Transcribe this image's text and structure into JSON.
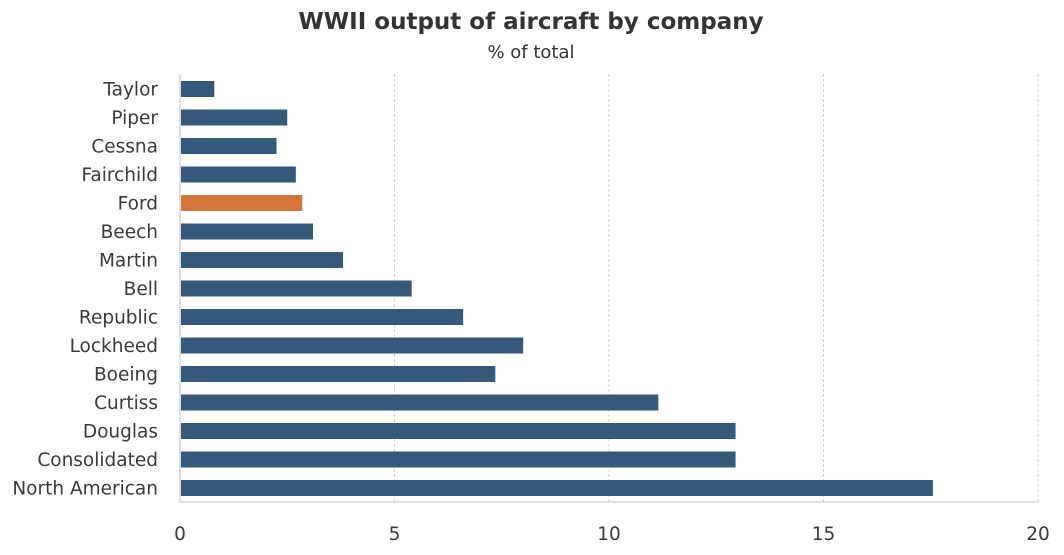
{
  "chart_data": {
    "type": "bar",
    "orientation": "horizontal",
    "title": "WWII output of aircraft by company",
    "subtitle": "% of total",
    "xlabel": "",
    "ylabel": "",
    "xlim": [
      0,
      20
    ],
    "xticks": [
      "0",
      "5",
      "10",
      "15",
      "20"
    ],
    "grid": true,
    "categories": [
      "Taylor",
      "Piper",
      "Cessna",
      "Fairchild",
      "Ford",
      "Beech",
      "Martin",
      "Bell",
      "Republic",
      "Lockheed",
      "Boeing",
      "Curtiss",
      "Douglas",
      "Consolidated",
      "North American"
    ],
    "values": [
      0.8,
      2.5,
      2.25,
      2.7,
      2.85,
      3.1,
      3.8,
      5.4,
      6.6,
      8.0,
      7.35,
      11.15,
      12.95,
      12.95,
      17.55
    ],
    "highlight": "Ford",
    "colors": {
      "bar": "#34597a",
      "highlight": "#d4763c"
    }
  }
}
